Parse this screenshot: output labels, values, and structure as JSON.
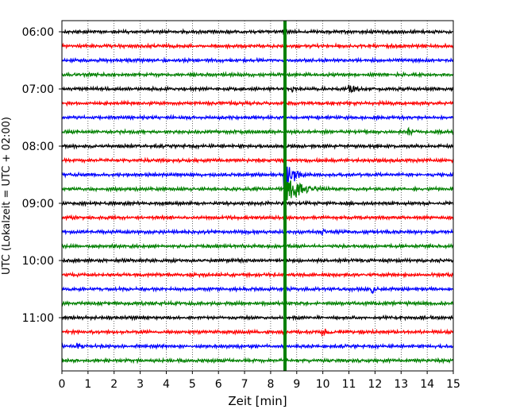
{
  "chart_data": {
    "type": "line",
    "subtype": "helicorder",
    "xlabel": "Zeit  [min]",
    "ylabel": "UTC (Lokalzeit = UTC + 02:00)",
    "xlim": [
      0,
      15
    ],
    "x_ticks": [
      0,
      1,
      2,
      3,
      4,
      5,
      6,
      7,
      8,
      9,
      10,
      11,
      12,
      13,
      14,
      15
    ],
    "x_tick_labels": [
      "0",
      "1",
      "2",
      "3",
      "4",
      "5",
      "6",
      "7",
      "8",
      "9",
      "10",
      "11",
      "12",
      "13",
      "14",
      "15"
    ],
    "y_tick_labels": [
      "06:00",
      "07:00",
      "08:00",
      "09:00",
      "10:00",
      "11:00"
    ],
    "y_tick_rows": [
      0,
      4,
      8,
      12,
      16,
      20
    ],
    "trace_interval_min": 15,
    "trace_start_times": [
      "06:00",
      "06:15",
      "06:30",
      "06:45",
      "07:00",
      "07:15",
      "07:30",
      "07:45",
      "08:00",
      "08:15",
      "08:30",
      "08:45",
      "09:00",
      "09:15",
      "09:30",
      "09:45",
      "10:00",
      "10:15",
      "10:30",
      "10:45",
      "11:00",
      "11:15",
      "11:30",
      "11:45"
    ],
    "trace_colors": [
      "#000000",
      "#ff0000",
      "#0000ff",
      "#008000"
    ],
    "grid": "vertical-dotted",
    "legend": "none",
    "events": [
      {
        "row": 4,
        "x": 11.0,
        "amp": 0.35,
        "dur": 0.5
      },
      {
        "row": 4,
        "x": 8.8,
        "amp": 0.25,
        "dur": 0.3
      },
      {
        "row": 6,
        "x": 9.4,
        "amp": 0.18,
        "dur": 0.4
      },
      {
        "row": 7,
        "x": 13.3,
        "amp": 0.2,
        "dur": 0.6
      },
      {
        "row": 10,
        "x": 8.55,
        "amp": 1.6,
        "dur": 0.5
      },
      {
        "row": 11,
        "x": 8.6,
        "amp": 1.1,
        "dur": 1.0
      },
      {
        "row": 14,
        "x": 10.0,
        "amp": 0.18,
        "dur": 0.4
      },
      {
        "row": 18,
        "x": 11.9,
        "amp": 0.35,
        "dur": 0.3
      },
      {
        "row": 22,
        "x": 0.6,
        "amp": 0.3,
        "dur": 0.4
      },
      {
        "row": 21,
        "x": 10.0,
        "amp": 0.2,
        "dur": 0.8
      }
    ],
    "marker": {
      "x": 8.55,
      "color": "#008000",
      "label": ""
    }
  }
}
